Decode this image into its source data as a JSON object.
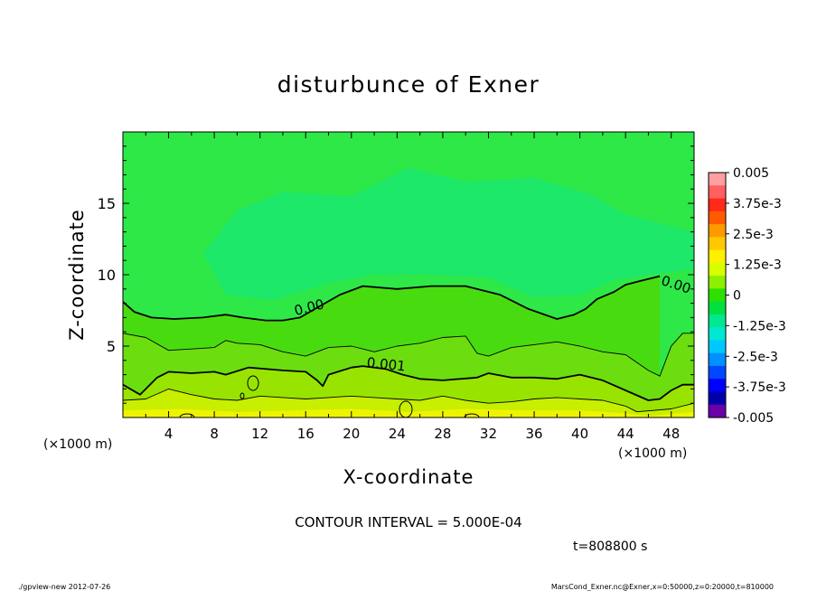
{
  "chart_data": {
    "type": "contour",
    "title": "disturbunce of Exner",
    "xlabel": "X-coordinate",
    "ylabel": "Z-coordinate",
    "x_unit_note_left": "(×1000 m)",
    "x_unit_note_right": "(×1000 m)",
    "xlim": [
      0,
      50
    ],
    "ylim": [
      0,
      20
    ],
    "xticks": [
      4,
      8,
      12,
      16,
      20,
      24,
      28,
      32,
      36,
      40,
      44,
      48
    ],
    "yticks": [
      5,
      10,
      15
    ],
    "contour_interval_text": "CONTOUR INTERVAL = 5.000E-04",
    "time_text": "t=808800 s",
    "contour_labels": [
      {
        "text": "0.00",
        "x": 16.4,
        "z": 7.4
      },
      {
        "text": "0.00",
        "x": 48.3,
        "z": 9.0
      },
      {
        "text": "0.001",
        "x": 23.0,
        "z": 3.4
      }
    ],
    "contours": [
      {
        "level": 0.0,
        "points": [
          [
            0,
            8.1
          ],
          [
            1,
            7.4
          ],
          [
            2.5,
            7.0
          ],
          [
            4.5,
            6.9
          ],
          [
            7,
            7.0
          ],
          [
            9,
            7.2
          ],
          [
            10.5,
            7.0
          ],
          [
            12.5,
            6.8
          ],
          [
            14,
            6.8
          ],
          [
            15.5,
            7.0
          ],
          [
            19,
            8.6
          ],
          [
            21,
            9.2
          ],
          [
            24,
            9.0
          ],
          [
            27,
            9.2
          ],
          [
            30,
            9.2
          ],
          [
            33,
            8.6
          ],
          [
            35.5,
            7.6
          ],
          [
            38,
            6.9
          ],
          [
            39.5,
            7.2
          ],
          [
            40.5,
            7.6
          ],
          [
            41.5,
            8.3
          ],
          [
            43,
            8.8
          ],
          [
            44,
            9.3
          ],
          [
            45.5,
            9.6
          ],
          [
            47,
            9.9
          ]
        ]
      },
      {
        "level": 0.0005,
        "points": [
          [
            0,
            5.9
          ],
          [
            2,
            5.6
          ],
          [
            4,
            4.7
          ],
          [
            6,
            4.8
          ],
          [
            8,
            4.9
          ],
          [
            9,
            5.4
          ],
          [
            10,
            5.2
          ],
          [
            12,
            5.1
          ],
          [
            14,
            4.6
          ],
          [
            16,
            4.3
          ],
          [
            18,
            4.9
          ],
          [
            20,
            5.0
          ],
          [
            22,
            4.6
          ],
          [
            24,
            5.0
          ],
          [
            26,
            5.2
          ],
          [
            28,
            5.6
          ],
          [
            30,
            5.7
          ],
          [
            31,
            4.5
          ],
          [
            32,
            4.3
          ],
          [
            34,
            4.9
          ],
          [
            36,
            5.1
          ],
          [
            38,
            5.3
          ],
          [
            40,
            5.0
          ],
          [
            42,
            4.6
          ],
          [
            44,
            4.4
          ],
          [
            46,
            3.3
          ],
          [
            47,
            2.9
          ],
          [
            48,
            5.0
          ],
          [
            49,
            5.9
          ],
          [
            50,
            5.9
          ]
        ]
      },
      {
        "level": 0.001,
        "points": [
          [
            0,
            2.3
          ],
          [
            1.5,
            1.6
          ],
          [
            3,
            2.8
          ],
          [
            4,
            3.2
          ],
          [
            6,
            3.1
          ],
          [
            8,
            3.2
          ],
          [
            9,
            3.0
          ],
          [
            11,
            3.5
          ],
          [
            14,
            3.3
          ],
          [
            16,
            3.2
          ],
          [
            17,
            2.6
          ],
          [
            17.5,
            2.2
          ],
          [
            18,
            3.0
          ],
          [
            20,
            3.5
          ],
          [
            21,
            3.6
          ],
          [
            23,
            3.4
          ],
          [
            24.5,
            3.0
          ],
          [
            26,
            2.7
          ],
          [
            28,
            2.6
          ],
          [
            31,
            2.8
          ],
          [
            32,
            3.1
          ],
          [
            34,
            2.8
          ],
          [
            36,
            2.8
          ],
          [
            38,
            2.7
          ],
          [
            40,
            3.0
          ],
          [
            42,
            2.6
          ],
          [
            44,
            1.9
          ],
          [
            46,
            1.2
          ],
          [
            47,
            1.3
          ],
          [
            48,
            1.9
          ],
          [
            49,
            2.3
          ],
          [
            50,
            2.3
          ]
        ]
      },
      {
        "level": 0.0015,
        "points": [
          [
            0,
            1.2
          ],
          [
            2,
            1.3
          ],
          [
            4,
            2.0
          ],
          [
            6,
            1.6
          ],
          [
            8,
            1.3
          ],
          [
            10,
            1.2
          ],
          [
            12,
            1.5
          ],
          [
            14,
            1.4
          ],
          [
            16,
            1.3
          ],
          [
            18,
            1.4
          ],
          [
            20,
            1.5
          ],
          [
            22,
            1.4
          ],
          [
            24,
            1.3
          ],
          [
            26,
            1.2
          ],
          [
            28,
            1.5
          ],
          [
            30,
            1.2
          ],
          [
            32,
            1.0
          ],
          [
            34,
            1.1
          ],
          [
            36,
            1.3
          ],
          [
            38,
            1.4
          ],
          [
            40,
            1.3
          ],
          [
            42,
            1.2
          ],
          [
            44,
            0.8
          ],
          [
            45,
            0.4
          ],
          [
            48,
            0.6
          ],
          [
            50,
            1.0
          ]
        ]
      }
    ],
    "colorbar": {
      "tick_labels": [
        "0.005",
        "3.75e-3",
        "2.5e-3",
        "1.25e-3",
        "0",
        "-1.25e-3",
        "-2.5e-3",
        "-3.75e-3",
        "-0.005"
      ],
      "colors_top_to_bottom": [
        "#ff9f9f",
        "#ff6060",
        "#ff2a1a",
        "#ff5a00",
        "#ff9900",
        "#ffc800",
        "#fff000",
        "#d8ff00",
        "#8cf000",
        "#2ee000",
        "#00e040",
        "#00e890",
        "#00e8d0",
        "#00c8ff",
        "#0090ff",
        "#0048ff",
        "#0000ff",
        "#0000a8",
        "#6a00a8"
      ]
    },
    "field_colors": {
      "upper": "#2ee848",
      "core": "#1ee86a",
      "mid": "#48dc10",
      "low1": "#6cde10",
      "low2": "#98e400",
      "low3": "#c8ee00",
      "low4": "#eef400"
    }
  },
  "footer": {
    "left": "./gpview-new   2012-07-26",
    "right": "MarsCond_Exner.nc@Exner,x=0:50000,z=0:20000,t=810000"
  }
}
